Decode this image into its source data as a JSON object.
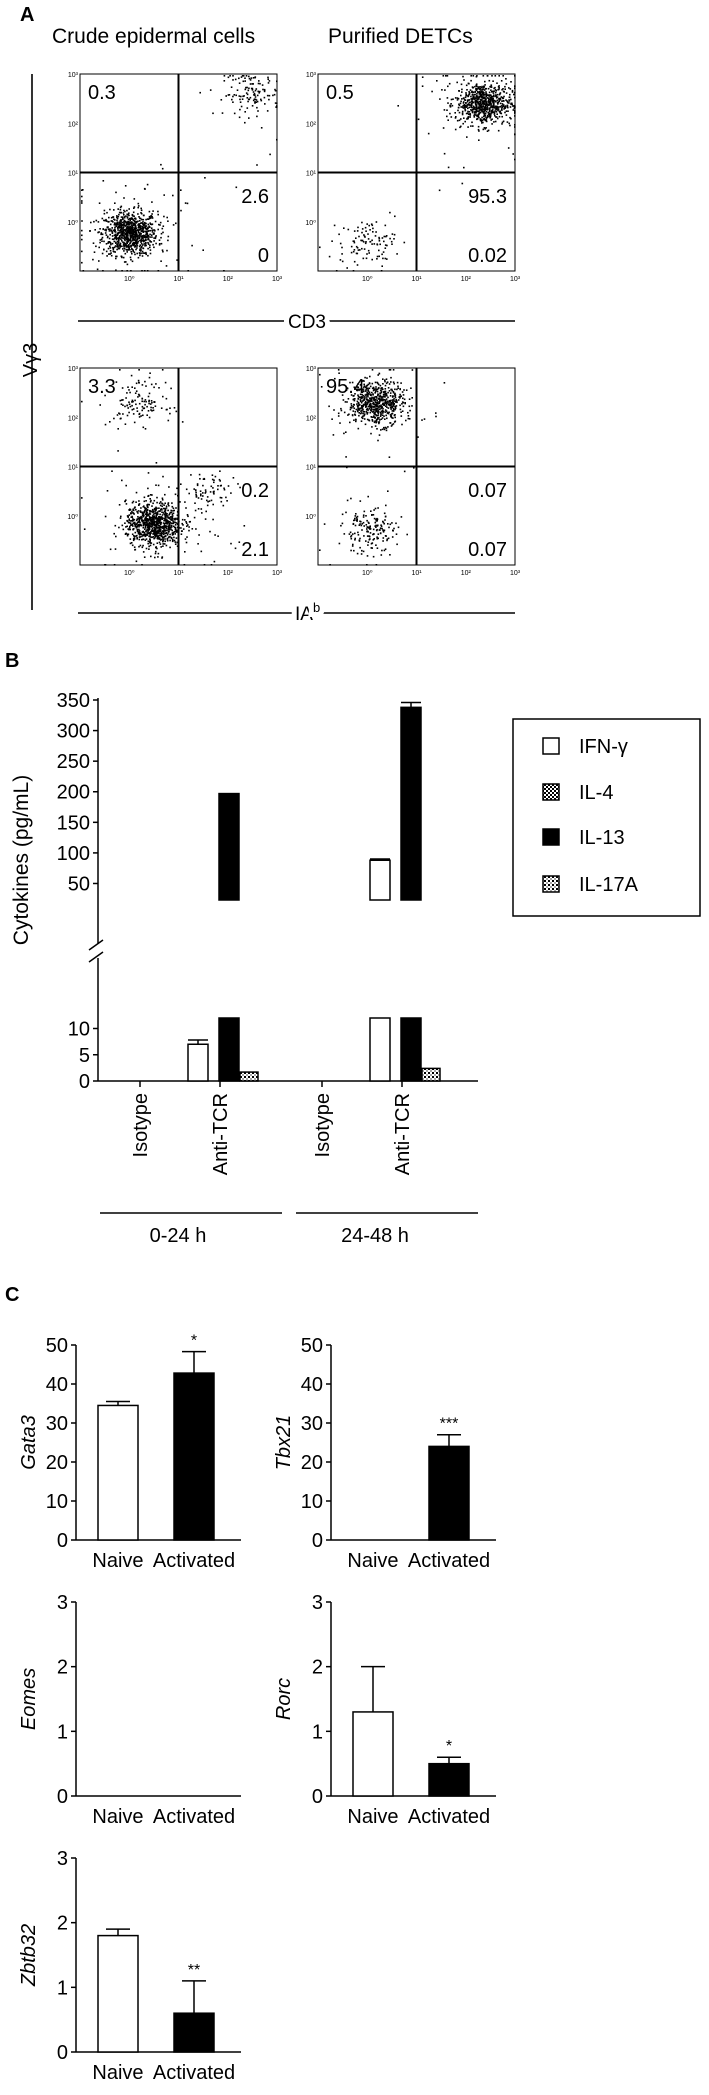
{
  "panel_labels": {
    "a": "A",
    "b": "B",
    "c": "C"
  },
  "chart_data": [
    {
      "id": "A",
      "type": "scatter",
      "title_left": "Crude epidermal cells",
      "title_right": "Purified DETCs",
      "ylabel": "Vγ3",
      "row_xlabels": [
        "CD3",
        "IA",
        "b"
      ],
      "tick_labels": [
        "10⁰",
        "10¹",
        "10²",
        "10³"
      ],
      "axis_scale": "log",
      "xlim": [
        0.1,
        1000
      ],
      "ylim": [
        0.1,
        1000
      ],
      "plots": [
        {
          "row": 1,
          "col": 1,
          "quadrant_percentages": {
            "upper_left": "0.3",
            "upper_right": "2.6",
            "lower_right": "0"
          },
          "clusters": [
            {
              "x": 1,
              "y": 0.6,
              "n": 900
            },
            {
              "x": 300,
              "y": 400,
              "n": 130
            }
          ]
        },
        {
          "row": 1,
          "col": 2,
          "quadrant_percentages": {
            "upper_left": "0.5",
            "upper_right": "95.3",
            "lower_right": "0.02"
          },
          "clusters": [
            {
              "x": 220,
              "y": 260,
              "n": 750
            },
            {
              "x": 1,
              "y": 0.4,
              "n": 110
            }
          ]
        },
        {
          "row": 2,
          "col": 1,
          "quadrant_percentages": {
            "upper_left": "3.3",
            "upper_right": "0.2",
            "lower_right": "2.1"
          },
          "clusters": [
            {
              "x": 3,
              "y": 0.7,
              "n": 900
            },
            {
              "x": 1.5,
              "y": 200,
              "n": 130
            },
            {
              "x": 40,
              "y": 3,
              "n": 80
            }
          ]
        },
        {
          "row": 2,
          "col": 2,
          "quadrant_percentages": {
            "upper_left": "95.4",
            "upper_right": "0.07",
            "lower_right": "0.07"
          },
          "clusters": [
            {
              "x": 1.5,
              "y": 200,
              "n": 650
            },
            {
              "x": 1,
              "y": 0.5,
              "n": 180
            }
          ]
        }
      ]
    },
    {
      "id": "B",
      "type": "bar",
      "ylabel": "Cytokines (pg/mL)",
      "y_axis_break": true,
      "y_lower_ticks": [
        "0",
        "5",
        "10"
      ],
      "y_upper_ticks": [
        "50",
        "100",
        "150",
        "200",
        "250",
        "300",
        "350"
      ],
      "categories": [
        "Isotype",
        "Anti-TCR",
        "Isotype",
        "Anti-TCR"
      ],
      "groups": [
        "0-24 h",
        "24-48 h"
      ],
      "legend_position": "right",
      "legend": [
        "IFN-γ",
        "IL-4",
        "IL-13",
        "IL-17A"
      ],
      "series": [
        {
          "name": "IFN-γ",
          "values": [
            0,
            7,
            0,
            88
          ],
          "errors": [
            0,
            0.8,
            0,
            2
          ]
        },
        {
          "name": "IL-4",
          "values": [
            0,
            0,
            0,
            0
          ],
          "errors": [
            0,
            0,
            0,
            0
          ]
        },
        {
          "name": "IL-13",
          "values": [
            0,
            197,
            0,
            338
          ],
          "errors": [
            0,
            0,
            0,
            8
          ]
        },
        {
          "name": "IL-17A",
          "values": [
            0,
            1.7,
            0,
            2.4
          ],
          "errors": [
            0,
            0,
            0,
            0
          ]
        }
      ]
    },
    {
      "id": "C",
      "type": "bar",
      "categories": [
        "Naive",
        "Activated"
      ],
      "panels": [
        {
          "gene": "Gata3",
          "ylim": [
            0,
            50
          ],
          "yticks": [
            "0",
            "10",
            "20",
            "30",
            "40",
            "50"
          ],
          "values": [
            34.5,
            42.8
          ],
          "errors": [
            1,
            5.5
          ],
          "significance": "*"
        },
        {
          "gene": "Tbx21",
          "ylim": [
            0,
            50
          ],
          "yticks": [
            "0",
            "10",
            "20",
            "30",
            "40",
            "50"
          ],
          "values": [
            0,
            24
          ],
          "errors": [
            0,
            3
          ],
          "significance": "***"
        },
        {
          "gene": "Eomes",
          "ylim": [
            0,
            3
          ],
          "yticks": [
            "0",
            "1",
            "2",
            "3"
          ],
          "values": [
            0,
            0
          ],
          "errors": [
            0,
            0
          ],
          "significance": ""
        },
        {
          "gene": "Rorc",
          "ylim": [
            0,
            3
          ],
          "yticks": [
            "0",
            "1",
            "2",
            "3"
          ],
          "values": [
            1.3,
            0.5
          ],
          "errors": [
            0.7,
            0.1
          ],
          "significance": "*"
        },
        {
          "gene": "Zbtb32",
          "ylim": [
            0,
            3
          ],
          "yticks": [
            "0",
            "1",
            "2",
            "3"
          ],
          "values": [
            1.8,
            0.6
          ],
          "errors": [
            0.1,
            0.5
          ],
          "significance": "**"
        }
      ]
    }
  ]
}
